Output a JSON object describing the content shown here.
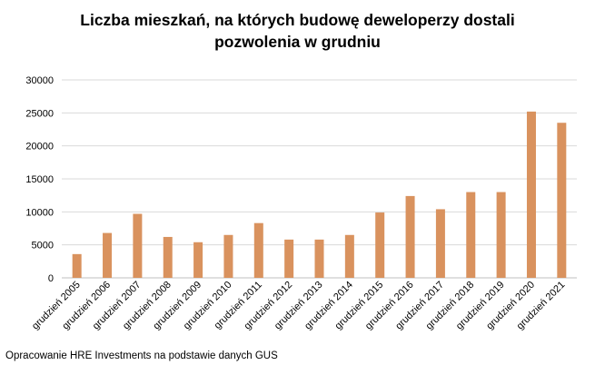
{
  "chart_data": {
    "type": "bar",
    "title_lines": [
      "Liczba mieszkań, na których budowę deweloperzy dostali",
      "pozwolenia w grudniu"
    ],
    "categories": [
      "grudzień 2005",
      "grudzień 2006",
      "grudzień 2007",
      "grudzień 2008",
      "grudzień 2009",
      "grudzień 2010",
      "grudzień 2011",
      "grudzień 2012",
      "grudzień 2013",
      "grudzień 2014",
      "grudzień 2015",
      "grudzień 2016",
      "grudzień 2017",
      "grudzień 2018",
      "grudzień 2019",
      "grudzień 2020",
      "grudzień 2021"
    ],
    "values": [
      3600,
      6800,
      9700,
      6200,
      5400,
      6500,
      8300,
      5800,
      5800,
      6500,
      9900,
      12400,
      10400,
      13000,
      13000,
      25200,
      23500
    ],
    "yticks": [
      "0",
      "5000",
      "10000",
      "15000",
      "20000",
      "25000",
      "30000"
    ],
    "ylim": [
      0,
      30000
    ],
    "grid": true,
    "legend": "none",
    "bar_color": "#D9925E",
    "grid_color": "#D9D9D9"
  },
  "source_note": "Opracowanie HRE Investments na podstawie danych GUS"
}
